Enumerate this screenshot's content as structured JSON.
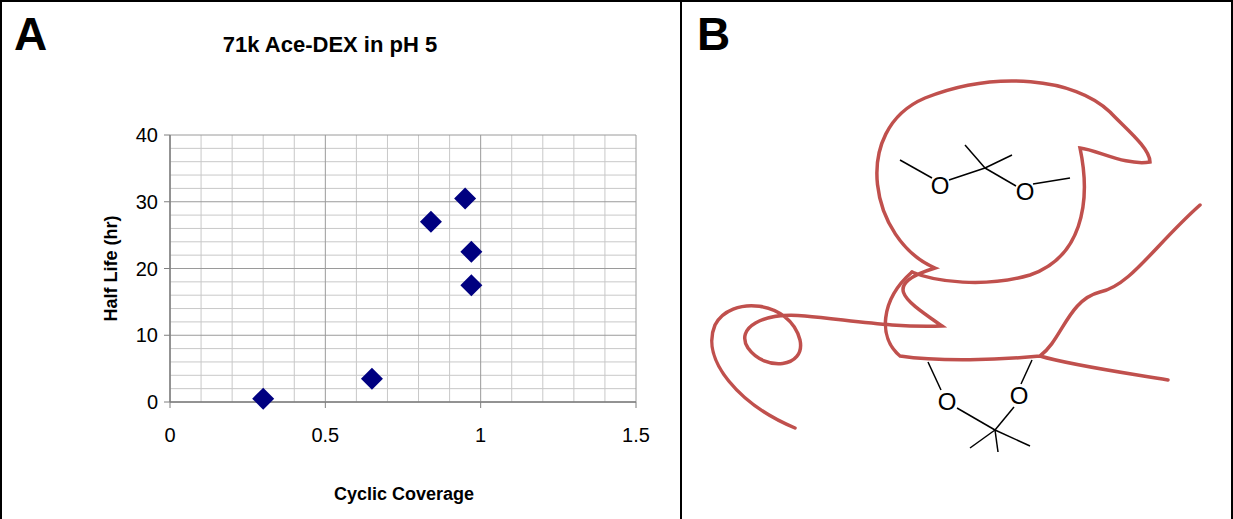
{
  "chart_data": {
    "type": "scatter",
    "panel_label": "A",
    "title": "71k Ace-DEX in pH 5",
    "x_label": "Cyclic Coverage",
    "y_label": "Half Life (hr)",
    "x": [
      0.3,
      0.65,
      0.84,
      0.95,
      0.97,
      0.97
    ],
    "values": [
      0.5,
      3.5,
      27,
      30.5,
      22.5,
      17.5
    ],
    "color": "#000080",
    "marker": "diamond",
    "xlim": [
      0,
      1.5
    ],
    "xticks": [
      0,
      0.5,
      1,
      1.5
    ],
    "ylim": [
      0,
      40
    ],
    "yticks": [
      0,
      10,
      20,
      30,
      40
    ],
    "grid": true
  },
  "diagram": {
    "panel_label": "B",
    "atoms": [
      "O",
      "O",
      "O",
      "O"
    ]
  }
}
